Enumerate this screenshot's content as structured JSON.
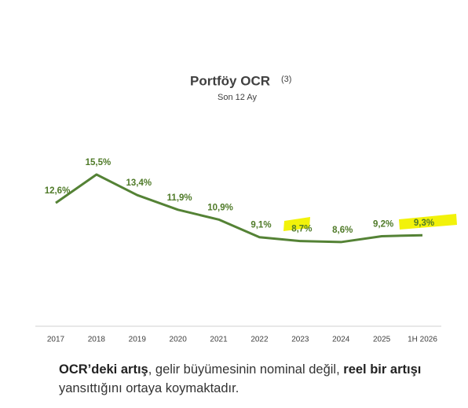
{
  "chart_data": {
    "type": "line",
    "title": "Portföy OCR",
    "title_note": "(3)",
    "subtitle": "Son 12 Ay",
    "categories": [
      "2017",
      "2018",
      "2019",
      "2020",
      "2021",
      "2022",
      "2023",
      "2024",
      "2025",
      "1H 2026"
    ],
    "values": [
      12.6,
      15.5,
      13.4,
      11.9,
      10.9,
      9.1,
      8.7,
      8.6,
      9.2,
      9.3
    ],
    "value_labels": [
      "12,6%",
      "15,5%",
      "13,4%",
      "11,9%",
      "10,9%",
      "9,1%",
      "8,7%",
      "8,6%",
      "9,2%",
      "9,3%"
    ],
    "color": "#548235",
    "ylim": [
      0,
      20
    ]
  },
  "footnote": [
    {
      "text": "OCR’deki artış",
      "bold": true
    },
    {
      "text": ", gelir büyümesinin nominal değil, ",
      "bold": false
    },
    {
      "text": "reel bir artışı",
      "bold": true
    },
    {
      "text": " yansıttığını ortaya koymaktadır.",
      "bold": false
    }
  ]
}
